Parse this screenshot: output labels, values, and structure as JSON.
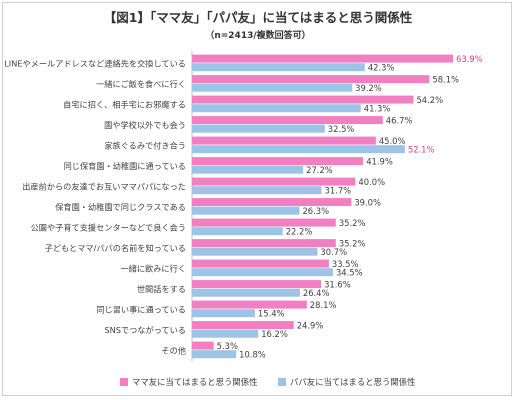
{
  "chart_data": {
    "type": "bar",
    "title": "【図1】「ママ友」「パパ友」に当てはまると思う関係性",
    "subtitle": "（n=2413/複数回答可）",
    "categories": [
      "LINEやメールアドレスなど連絡先を交換している",
      "一緒にご飯を食べに行く",
      "自宅に招く、相手宅にお邪魔する",
      "園や学校以外でも会う",
      "家族ぐるみで付き合う",
      "同じ保育園・幼稚園に通っている",
      "出産前からの友達でお互いママパパになった",
      "保育園・幼稚園で同じクラスである",
      "公園や子育て支援センターなどで良く会う",
      "子どもとママ/パパの名前を知っている",
      "一緒に飲みに行く",
      "世間話をする",
      "同じ習い事に通っている",
      "SNSでつながっている",
      "その他"
    ],
    "series": [
      {
        "name": "ママ友に当てはまると思う関係性",
        "color": "#f37fc3",
        "values": [
          63.9,
          58.1,
          54.2,
          46.7,
          45.0,
          41.9,
          40.0,
          39.0,
          35.2,
          35.2,
          33.5,
          31.6,
          28.1,
          24.9,
          5.3
        ],
        "labels": [
          "63.9%",
          "58.1%",
          "54.2%",
          "46.7%",
          "45.0%",
          "41.9%",
          "40.0%",
          "39.0%",
          "35.2%",
          "35.2%",
          "33.5%",
          "31.6%",
          "28.1%",
          "24.9%",
          "5.3%"
        ]
      },
      {
        "name": "パパ友に当てはまると思う関係性",
        "color": "#9dc3e6",
        "values": [
          42.3,
          39.2,
          41.3,
          32.5,
          52.1,
          27.2,
          31.7,
          26.3,
          22.2,
          30.7,
          34.5,
          26.4,
          15.4,
          16.2,
          10.8
        ],
        "labels": [
          "42.3%",
          "39.2%",
          "41.3%",
          "32.5%",
          "52.1%",
          "27.2%",
          "31.7%",
          "26.3%",
          "22.2%",
          "30.7%",
          "34.5%",
          "26.4%",
          "15.4%",
          "16.2%",
          "10.8%"
        ]
      }
    ],
    "highlight_color": "#e8388a",
    "highlight_labels": [
      [
        0,
        0
      ],
      [
        1,
        4
      ]
    ],
    "xlim": [
      0,
      70
    ],
    "legend": "bottom"
  }
}
